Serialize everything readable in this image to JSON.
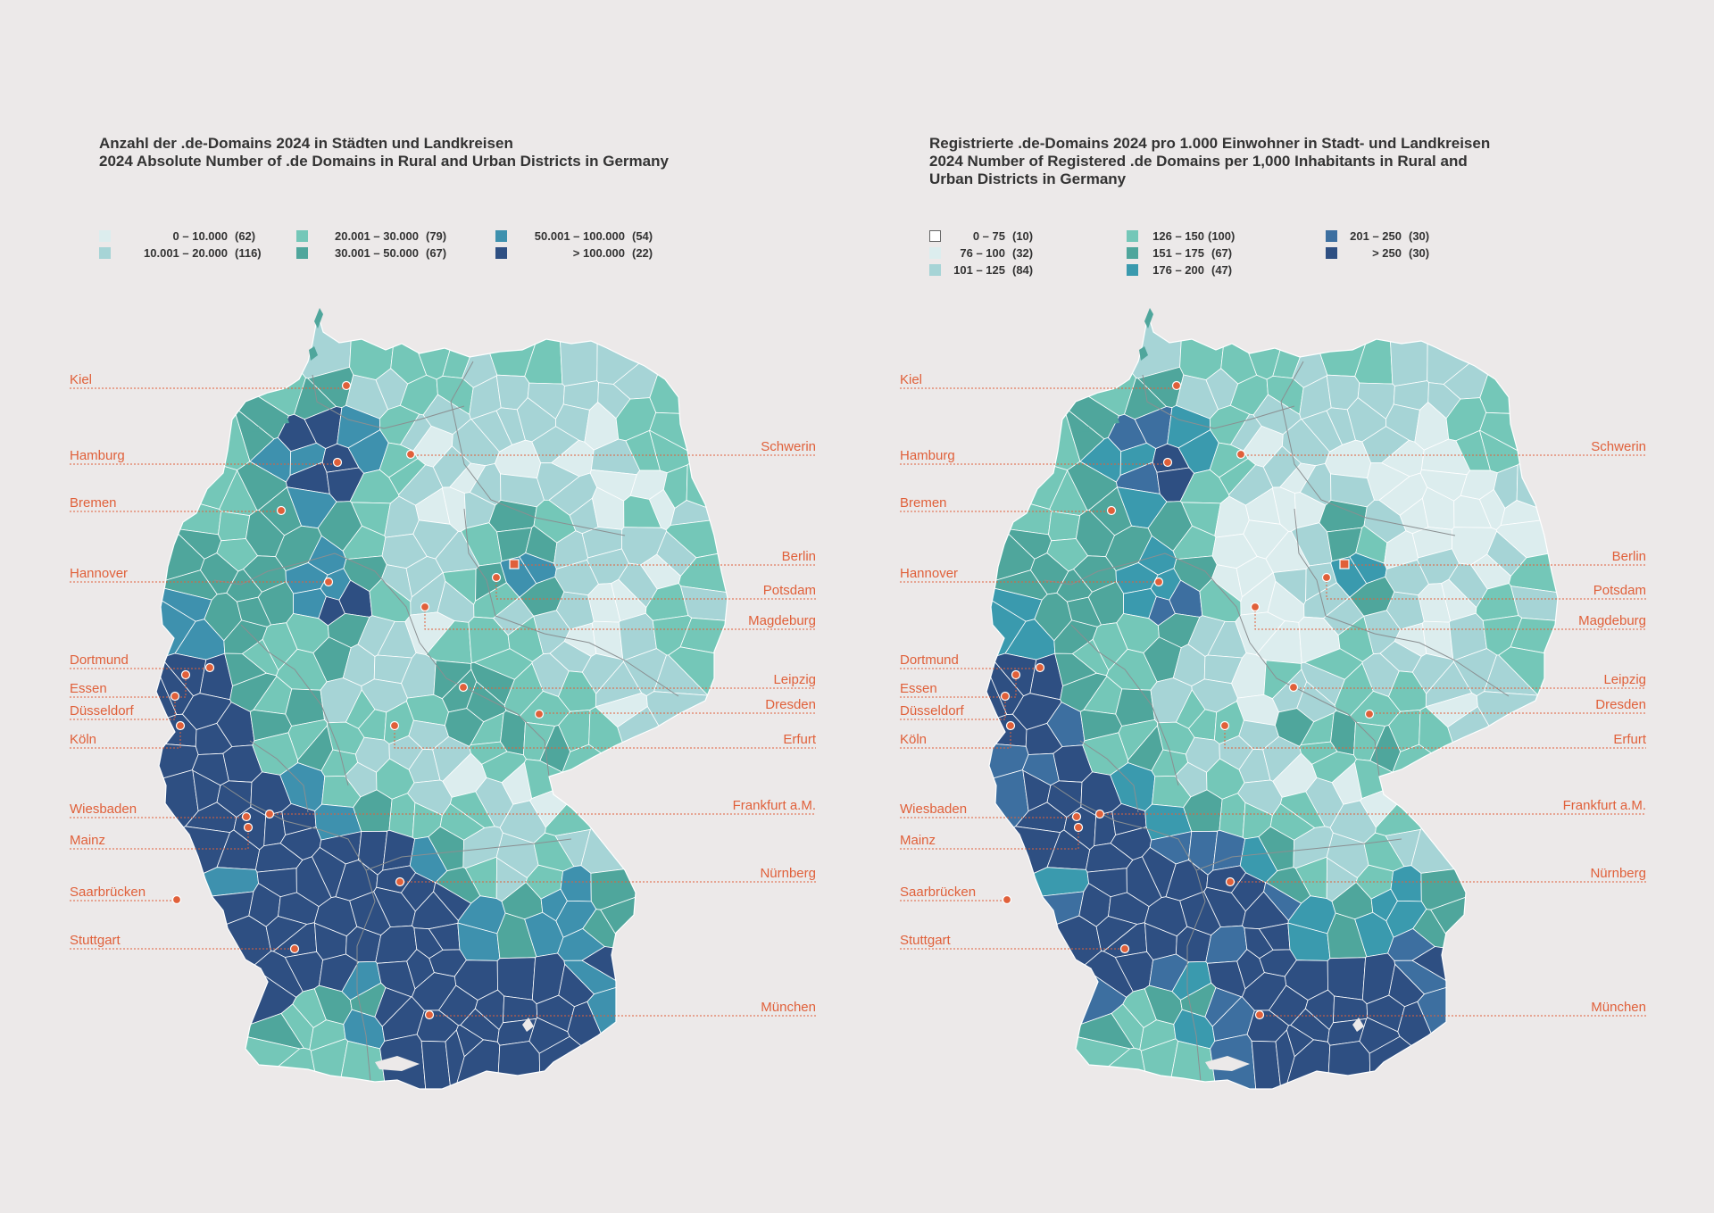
{
  "colors": {
    "background": "#ECE9E9",
    "accent": "#E0603A",
    "border": "#FFFFFF",
    "state_border": "#8A8F91"
  },
  "left": {
    "title_line1": "Anzahl der .de-Domains 2024 in Städten und Landkreisen",
    "title_line2": "2024 Absolute Number of .de Domains in Rural and Urban Districts in Germany",
    "legend": [
      {
        "range": "0  –  10.000",
        "count": "(62)",
        "color": "#DCEDEE"
      },
      {
        "range": "10.001  –  20.000",
        "count": "(116)",
        "color": "#A6D4D6"
      },
      {
        "range": "20.001  –  30.000",
        "count": "(79)",
        "color": "#74C7B8"
      },
      {
        "range": "30.001  –  50.000",
        "count": "(67)",
        "color": "#4FA69C"
      },
      {
        "range": "50.001  –  100.000",
        "count": "(54)",
        "color": "#3E91AE"
      },
      {
        "range": ">  100.000",
        "count": "(22)",
        "color": "#2E4F82"
      }
    ]
  },
  "right": {
    "title_line1": "Registrierte .de-Domains 2024 pro 1.000 Einwohner in Stadt- und Landkreisen",
    "title_line2": "2024 Number of Registered .de Domains per 1,000 Inhabitants in Rural and",
    "title_line3": "Urban Districts in Germany",
    "legend": [
      {
        "range": "0  –  75",
        "count": "(10)",
        "color": "#FFFFFF"
      },
      {
        "range": "76  –  100",
        "count": "(32)",
        "color": "#DCEDEE"
      },
      {
        "range": "101  –  125",
        "count": "(84)",
        "color": "#A6D4D6"
      },
      {
        "range": "126  –  150",
        "count": "(100)",
        "color": "#74C7B8"
      },
      {
        "range": "151  –  175",
        "count": "(67)",
        "color": "#4FA69C"
      },
      {
        "range": "176  –  200",
        "count": "(47)",
        "color": "#3A9AAE"
      },
      {
        "range": "201  –  250",
        "count": "(30)",
        "color": "#3D6FA0"
      },
      {
        "range": ">  250",
        "count": "(30)",
        "color": "#2E4F82"
      }
    ]
  },
  "cities": [
    {
      "name": "Kiel",
      "side": "left"
    },
    {
      "name": "Hamburg",
      "side": "left"
    },
    {
      "name": "Bremen",
      "side": "left"
    },
    {
      "name": "Hannover",
      "side": "left"
    },
    {
      "name": "Dortmund",
      "side": "left"
    },
    {
      "name": "Essen",
      "side": "left"
    },
    {
      "name": "Düsseldorf",
      "side": "left"
    },
    {
      "name": "Köln",
      "side": "left"
    },
    {
      "name": "Wiesbaden",
      "side": "left"
    },
    {
      "name": "Mainz",
      "side": "left"
    },
    {
      "name": "Saarbrücken",
      "side": "left"
    },
    {
      "name": "Stuttgart",
      "side": "left"
    },
    {
      "name": "Schwerin",
      "side": "right"
    },
    {
      "name": "Berlin",
      "side": "right"
    },
    {
      "name": "Potsdam",
      "side": "right"
    },
    {
      "name": "Magdeburg",
      "side": "right"
    },
    {
      "name": "Leipzig",
      "side": "right"
    },
    {
      "name": "Dresden",
      "side": "right"
    },
    {
      "name": "Erfurt",
      "side": "right"
    },
    {
      "name": "Frankfurt a.M.",
      "side": "right"
    },
    {
      "name": "Nürnberg",
      "side": "right"
    },
    {
      "name": "München",
      "side": "right"
    }
  ]
}
